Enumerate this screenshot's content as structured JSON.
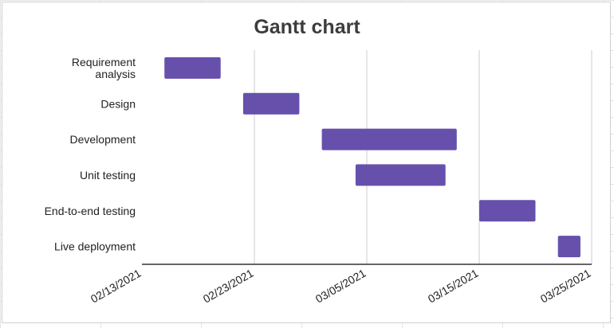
{
  "chart_data": {
    "type": "bar",
    "subtype": "gantt",
    "title": "Gantt chart",
    "xlabel": "",
    "ylabel": "",
    "grid": true,
    "x_axis": {
      "kind": "date",
      "range": [
        "2021-02-13",
        "2021-03-25"
      ],
      "ticks": [
        "02/13/2021",
        "02/23/2021",
        "03/05/2021",
        "03/15/2021",
        "03/25/2021"
      ],
      "tick_values": [
        "2021-02-13",
        "2021-02-23",
        "2021-03-05",
        "2021-03-15",
        "2021-03-25"
      ]
    },
    "categories": [
      "Requirement analysis",
      "Design",
      "Development",
      "Unit testing",
      "End-to-end testing",
      "Live deployment"
    ],
    "label_lines": [
      [
        "Requirement",
        "analysis"
      ],
      [
        "Design"
      ],
      [
        "Development"
      ],
      [
        "Unit testing"
      ],
      [
        "End-to-end testing"
      ],
      [
        "Live deployment"
      ]
    ],
    "tasks": [
      {
        "name": "Requirement analysis",
        "start": "2021-02-15",
        "end": "2021-02-20"
      },
      {
        "name": "Design",
        "start": "2021-02-22",
        "end": "2021-02-27"
      },
      {
        "name": "Development",
        "start": "2021-03-01",
        "end": "2021-03-13"
      },
      {
        "name": "Unit testing",
        "start": "2021-03-04",
        "end": "2021-03-12"
      },
      {
        "name": "End-to-end testing",
        "start": "2021-03-15",
        "end": "2021-03-20"
      },
      {
        "name": "Live deployment",
        "start": "2021-03-22",
        "end": "2021-03-24"
      }
    ],
    "colors": {
      "bar": "#6650ac",
      "grid": "#cccccc",
      "axis": "#333333",
      "title": "#3d3d3d",
      "text": "#222222"
    }
  }
}
